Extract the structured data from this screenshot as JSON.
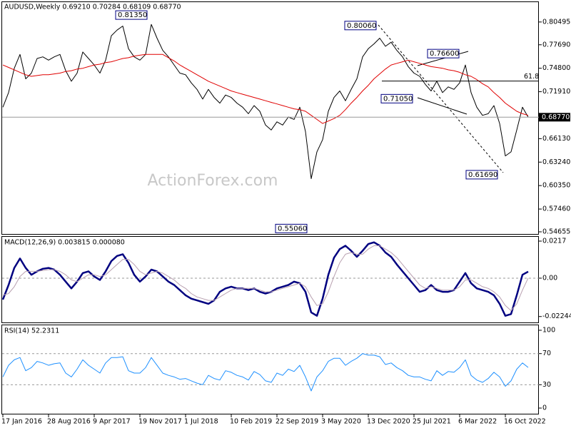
{
  "chart_data": [
    {
      "type": "line",
      "title": "AUDUSD,Weekly  0.69210 0.70284 0.68109 0.68770",
      "watermark": "ActionForex.com",
      "categories": [
        "17 Jan 2016",
        null,
        null,
        null,
        null,
        null,
        null,
        null,
        "28 Aug 2016",
        null,
        null,
        null,
        null,
        null,
        null,
        null,
        "9 Apr 2017",
        null,
        null,
        null,
        null,
        null,
        null,
        null,
        "19 Nov 2017",
        null,
        null,
        null,
        null,
        null,
        null,
        null,
        "1 Jul 2018",
        null,
        null,
        null,
        null,
        null,
        null,
        null,
        "10 Feb 2019",
        null,
        null,
        null,
        null,
        null,
        null,
        null,
        "22 Sep 2019",
        null,
        null,
        null,
        null,
        null,
        null,
        null,
        "3 May 2020",
        null,
        null,
        null,
        null,
        null,
        null,
        null,
        "13 Dec 2020",
        null,
        null,
        null,
        null,
        null,
        null,
        null,
        "25 Jul 2021",
        null,
        null,
        null,
        null,
        null,
        null,
        null,
        "6 Mar 2022",
        null,
        null,
        null,
        null,
        null,
        null,
        null,
        "16 Oct 2022",
        null,
        null,
        null,
        null
      ],
      "series": [
        {
          "color": "#000000",
          "values": [
            0.7,
            0.718,
            0.748,
            0.765,
            0.735,
            0.742,
            0.76,
            0.762,
            0.758,
            0.762,
            0.765,
            0.745,
            0.732,
            0.742,
            0.768,
            0.76,
            0.752,
            0.742,
            0.758,
            0.788,
            0.795,
            0.8,
            0.772,
            0.762,
            0.758,
            0.765,
            0.802,
            0.785,
            0.77,
            0.762,
            0.752,
            0.742,
            0.74,
            0.73,
            0.722,
            0.71,
            0.722,
            0.712,
            0.705,
            0.715,
            0.712,
            0.705,
            0.7,
            0.692,
            0.702,
            0.695,
            0.678,
            0.672,
            0.682,
            0.678,
            0.688,
            0.685,
            0.7,
            0.67,
            0.612,
            0.645,
            0.66,
            0.695,
            0.712,
            0.72,
            0.708,
            0.722,
            0.735,
            0.762,
            0.772,
            0.778,
            0.785,
            0.775,
            0.78,
            0.77,
            0.762,
            0.75,
            0.742,
            0.738,
            0.728,
            0.72,
            0.732,
            0.718,
            0.725,
            0.722,
            0.73,
            0.752,
            0.718,
            0.7,
            0.69,
            0.692,
            0.702,
            0.68,
            0.64,
            0.645,
            0.672,
            0.7,
            0.6877
          ]
        },
        {
          "color": "#e00000",
          "values": [
            0.752,
            0.749,
            0.746,
            0.743,
            0.74,
            0.738,
            0.739,
            0.74,
            0.74,
            0.741,
            0.742,
            0.744,
            0.745,
            0.747,
            0.748,
            0.75,
            0.752,
            0.753,
            0.755,
            0.756,
            0.758,
            0.76,
            0.761,
            0.763,
            0.764,
            0.765,
            0.765,
            0.765,
            0.765,
            0.761,
            0.757,
            0.752,
            0.748,
            0.744,
            0.74,
            0.736,
            0.732,
            0.729,
            0.726,
            0.723,
            0.72,
            0.718,
            0.716,
            0.714,
            0.712,
            0.71,
            0.708,
            0.706,
            0.704,
            0.702,
            0.7,
            0.698,
            0.697,
            0.695,
            0.69,
            0.685,
            0.68,
            0.683,
            0.686,
            0.69,
            0.697,
            0.705,
            0.712,
            0.72,
            0.727,
            0.735,
            0.741,
            0.747,
            0.752,
            0.754,
            0.756,
            0.758,
            0.756,
            0.754,
            0.752,
            0.75,
            0.749,
            0.748,
            0.746,
            0.745,
            0.743,
            0.74,
            0.738,
            0.734,
            0.729,
            0.725,
            0.718,
            0.712,
            0.705,
            0.7,
            0.695,
            0.692,
            0.69
          ]
        }
      ],
      "ylim": [
        0.5439,
        0.8294
      ],
      "yticks": [
        0.80495,
        {
          "value": 0.7769,
          "label": "0.77690"
        },
        {
          "value": 0.748,
          "label": "0.74800"
        },
        {
          "value": 0.7191,
          "label": "0.71910"
        },
        {
          "value": 0.6613,
          "label": "0.66130"
        },
        {
          "value": 0.6324,
          "label": "0.63240"
        },
        {
          "value": 0.6035,
          "label": "0.60350"
        },
        {
          "value": 0.5746,
          "label": "0.57460"
        },
        0.54655
      ],
      "annotations": [
        {
          "value": 0.8135,
          "label": "0.81350"
        },
        {
          "value": 0.8006,
          "label": "0.80060"
        },
        {
          "value": 0.766,
          "label": "0.76600"
        },
        {
          "value": 0.7105,
          "label": "0.71050"
        },
        {
          "value": 0.6169,
          "label": "0.61690"
        },
        {
          "value": 0.5506,
          "label": "0.55060"
        }
      ],
      "fib_level": {
        "value": 0.7322,
        "label": "61.8"
      },
      "last_price": {
        "value": 0.6877,
        "label": "0.68770"
      }
    },
    {
      "type": "line",
      "title": "MACD(12,26,9) 0.003815 0.000080",
      "series": [
        {
          "color": "#000080",
          "values": [
            -0.0125,
            -0.004,
            0.006,
            0.0115,
            0.006,
            0.002,
            0.004,
            0.0055,
            0.006,
            0.005,
            0.002,
            -0.002,
            -0.006,
            -0.002,
            0.003,
            0.004,
            0.001,
            -0.001,
            0.004,
            0.01,
            0.013,
            0.014,
            0.009,
            0.002,
            -0.002,
            0.001,
            0.005,
            0.004,
            0.001,
            -0.002,
            -0.004,
            -0.007,
            -0.01,
            -0.012,
            -0.013,
            -0.014,
            -0.015,
            -0.013,
            -0.008,
            -0.006,
            -0.005,
            -0.006,
            -0.006,
            -0.007,
            -0.006,
            -0.008,
            -0.009,
            -0.008,
            -0.006,
            -0.005,
            -0.004,
            -0.002,
            -0.003,
            -0.008,
            -0.02,
            -0.022,
            -0.012,
            0.002,
            0.012,
            0.017,
            0.019,
            0.016,
            0.0125,
            0.016,
            0.02,
            0.021,
            0.019,
            0.015,
            0.0125,
            0.008,
            0.004,
            0.0,
            -0.004,
            -0.008,
            -0.007,
            -0.004,
            -0.007,
            -0.008,
            -0.008,
            -0.007,
            -0.002,
            0.003,
            -0.003,
            -0.006,
            -0.007,
            -0.008,
            -0.01,
            -0.015,
            -0.022,
            -0.021,
            -0.01,
            0.002,
            0.003815
          ]
        },
        {
          "color": "#b8a0b0",
          "values": [
            -0.01,
            -0.009,
            -0.005,
            0.001,
            0.004,
            0.004,
            0.004,
            0.0045,
            0.005,
            0.005,
            0.004,
            0.002,
            -0.001,
            -0.002,
            0.0,
            0.002,
            0.002,
            0.001,
            0.002,
            0.005,
            0.008,
            0.011,
            0.011,
            0.008,
            0.004,
            0.002,
            0.003,
            0.004,
            0.003,
            0.001,
            -0.001,
            -0.004,
            -0.006,
            -0.009,
            -0.011,
            -0.012,
            -0.013,
            -0.013,
            -0.011,
            -0.009,
            -0.007,
            -0.006,
            -0.006,
            -0.006,
            -0.006,
            -0.007,
            -0.008,
            -0.008,
            -0.007,
            -0.006,
            -0.005,
            -0.004,
            -0.003,
            -0.005,
            -0.011,
            -0.016,
            -0.015,
            -0.008,
            0.001,
            0.009,
            0.014,
            0.015,
            0.014,
            0.014,
            0.017,
            0.019,
            0.019,
            0.017,
            0.015,
            0.012,
            0.008,
            0.004,
            0.0,
            -0.004,
            -0.006,
            -0.005,
            -0.006,
            -0.007,
            -0.007,
            -0.007,
            -0.005,
            -0.001,
            -0.001,
            -0.003,
            -0.005,
            -0.006,
            -0.008,
            -0.011,
            -0.016,
            -0.019,
            -0.015,
            -0.007,
            8e-05
          ]
        }
      ],
      "ylim": [
        -0.0259,
        0.0242
      ],
      "yticks": [
        0.0217,
        {
          "value": 0,
          "label": "0.00"
        },
        -0.022445
      ],
      "levels": [
        0
      ]
    },
    {
      "type": "line",
      "title": "RSI(14) 52.2311",
      "series": [
        {
          "color": "#1e90ff",
          "values": [
            40,
            55,
            62,
            65,
            48,
            52,
            60,
            58,
            55,
            57,
            58,
            45,
            40,
            50,
            62,
            55,
            50,
            45,
            58,
            65,
            65,
            66,
            48,
            45,
            45,
            52,
            65,
            55,
            45,
            42,
            40,
            37,
            38,
            35,
            32,
            30,
            42,
            38,
            36,
            48,
            46,
            42,
            40,
            36,
            47,
            43,
            35,
            33,
            45,
            42,
            50,
            47,
            55,
            40,
            22,
            40,
            48,
            60,
            64,
            64,
            55,
            60,
            64,
            70,
            68,
            68,
            66,
            56,
            58,
            52,
            48,
            42,
            40,
            40,
            37,
            35,
            48,
            42,
            47,
            46,
            52,
            62,
            42,
            36,
            33,
            38,
            46,
            40,
            28,
            35,
            50,
            58,
            52.2311
          ]
        }
      ],
      "ylim": [
        -7.3,
        106.4
      ],
      "yticks": [
        100,
        70,
        30,
        0
      ],
      "levels": [
        70,
        30
      ]
    }
  ]
}
